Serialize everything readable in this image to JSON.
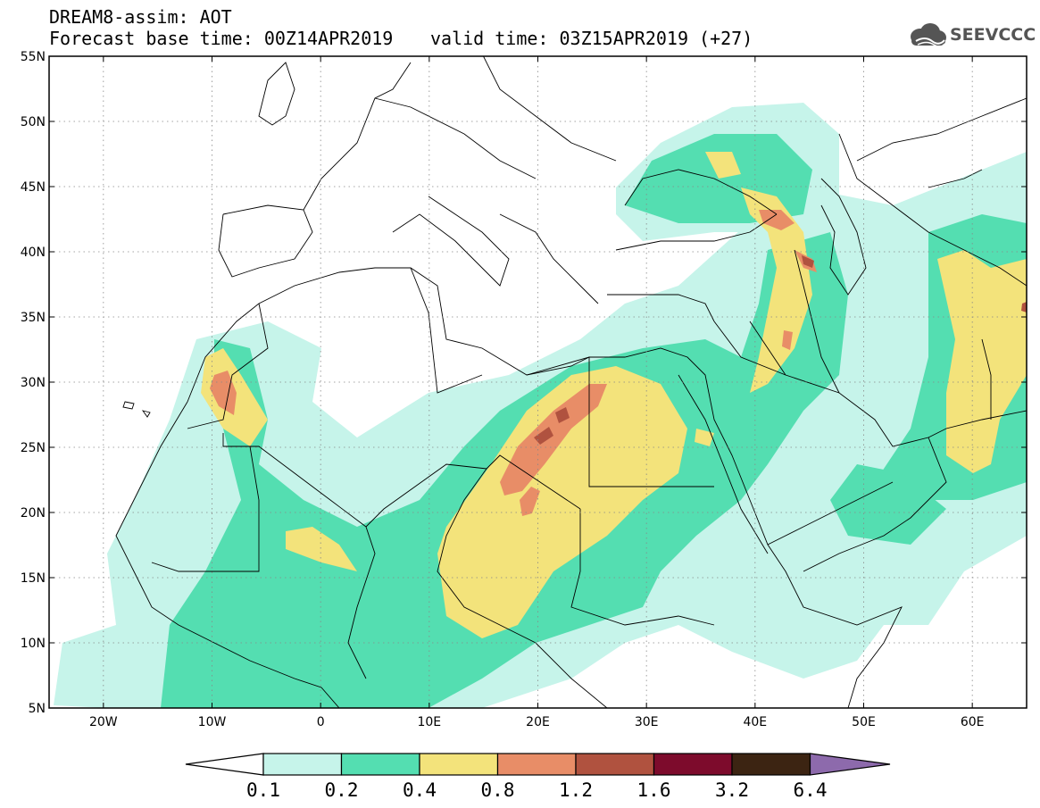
{
  "header": {
    "title": "DREAM8-assim: AOT",
    "base_time": "Forecast base time: 00Z14APR2019",
    "valid_time": "valid time: 03Z15APR2019 (+27)"
  },
  "logo": {
    "text": "SEEVCCC",
    "icon": "cloud-icon"
  },
  "map": {
    "projection": "lat-lon",
    "lon_range": [
      -25,
      65
    ],
    "lat_range": [
      5,
      55
    ],
    "lat_labels": [
      "5N",
      "10N",
      "15N",
      "20N",
      "25N",
      "30N",
      "35N",
      "40N",
      "45N",
      "50N",
      "55N"
    ],
    "lat_values": [
      5,
      10,
      15,
      20,
      25,
      30,
      35,
      40,
      45,
      50,
      55
    ],
    "lon_labels": [
      "20W",
      "10W",
      "0",
      "10E",
      "20E",
      "30E",
      "40E",
      "50E",
      "60E"
    ],
    "lon_values": [
      -20,
      -10,
      0,
      10,
      20,
      30,
      40,
      50,
      60
    ],
    "grid": "dotted"
  },
  "colorbar": {
    "labels": [
      "0.1",
      "0.2",
      "0.4",
      "0.8",
      "1.2",
      "1.6",
      "3.2",
      "6.4"
    ],
    "colors": [
      "#ffffff",
      "#c6f4ea",
      "#54deb1",
      "#f3e37b",
      "#e88d67",
      "#b0523f",
      "#7d0b2c",
      "#3c2412",
      "#8d6aac"
    ]
  }
}
